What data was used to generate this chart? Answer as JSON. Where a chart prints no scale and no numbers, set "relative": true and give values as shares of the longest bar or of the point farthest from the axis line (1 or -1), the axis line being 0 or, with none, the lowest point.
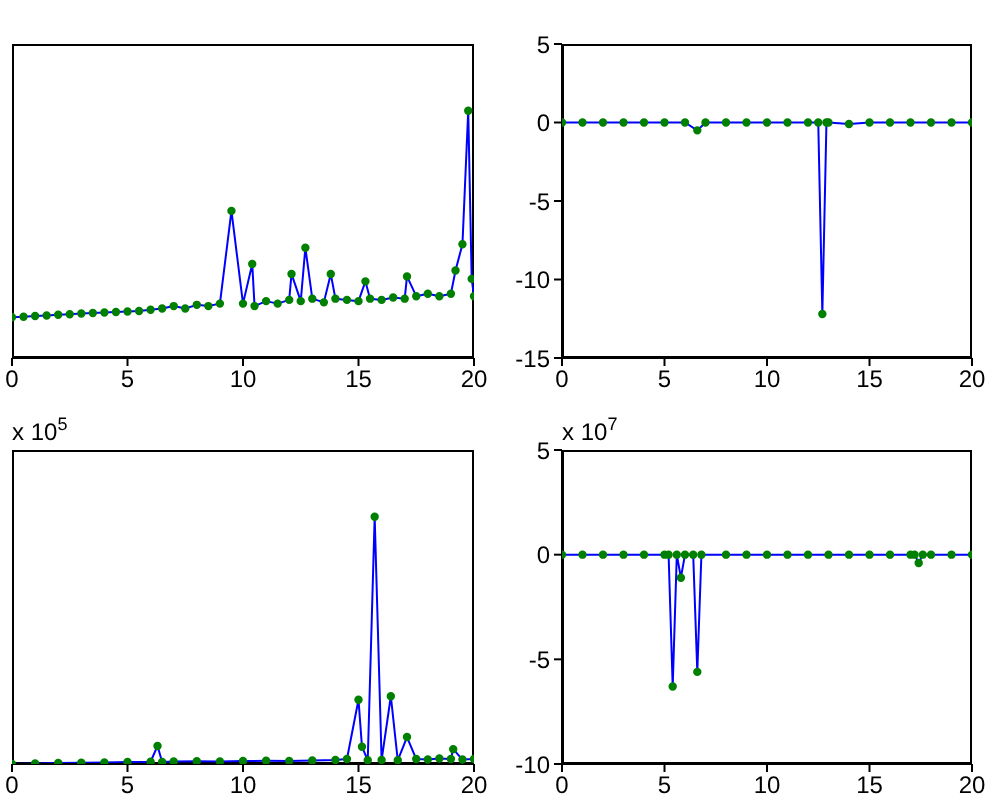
{
  "chart_data": [
    {
      "type": "line",
      "relative": true,
      "x": [
        0,
        0.5,
        1,
        1.5,
        2,
        2.5,
        3,
        3.5,
        4,
        4.5,
        5,
        5.5,
        6,
        6.5,
        7,
        7.5,
        8,
        8.5,
        9,
        9.5,
        10,
        10.4,
        10.5,
        11,
        11.5,
        12,
        12.1,
        12.5,
        12.7,
        13,
        13.5,
        13.8,
        14,
        14.5,
        15,
        15.3,
        15.5,
        16,
        16.5,
        17,
        17.1,
        17.5,
        18,
        18.5,
        19,
        19.2,
        19.5,
        19.75,
        19.9,
        20
      ],
      "xlim": [
        0,
        20
      ],
      "xticks": [
        0,
        5,
        10,
        15,
        20
      ],
      "tick_labels": "x",
      "series": [
        {
          "marker": "none",
          "color": "#0000ff",
          "values": [
            0.165,
            0.167,
            0.17,
            0.172,
            0.175,
            0.177,
            0.18,
            0.182,
            0.184,
            0.186,
            0.188,
            0.19,
            0.195,
            0.2,
            0.21,
            0.2,
            0.215,
            0.21,
            0.22,
            0.595,
            0.22,
            0.38,
            0.21,
            0.23,
            0.22,
            0.235,
            0.34,
            0.23,
            0.446,
            0.24,
            0.225,
            0.34,
            0.24,
            0.235,
            0.23,
            0.31,
            0.24,
            0.235,
            0.245,
            0.24,
            0.33,
            0.25,
            0.26,
            0.25,
            0.26,
            0.354,
            0.46,
            1,
            0.32,
            0.25
          ]
        },
        {
          "type": "scatter",
          "marker": "circle",
          "color": "#008000",
          "values": [
            0.165,
            0.167,
            0.17,
            0.172,
            0.175,
            0.177,
            0.18,
            0.182,
            0.184,
            0.186,
            0.188,
            0.19,
            0.195,
            0.2,
            0.21,
            0.2,
            0.215,
            0.21,
            0.22,
            0.595,
            0.22,
            0.38,
            0.21,
            0.23,
            0.22,
            0.235,
            0.34,
            0.23,
            0.446,
            0.24,
            0.225,
            0.34,
            0.24,
            0.235,
            0.23,
            0.31,
            0.24,
            0.235,
            0.245,
            0.24,
            0.33,
            0.25,
            0.26,
            0.25,
            0.26,
            0.354,
            0.46,
            1,
            0.32,
            0.25
          ]
        }
      ]
    },
    {
      "type": "line",
      "x": [
        0,
        1,
        2,
        3,
        4,
        5,
        6,
        6.6,
        7,
        8,
        9,
        10,
        11,
        12,
        12.5,
        12.7,
        12.9,
        13,
        14,
        15,
        16,
        17,
        18,
        19,
        20
      ],
      "xlim": [
        0,
        20
      ],
      "xticks": [
        0,
        5,
        10,
        15,
        20
      ],
      "ylim": [
        -15,
        5
      ],
      "yticks": [
        -15,
        -10,
        -5,
        0,
        5
      ],
      "series": [
        {
          "marker": "none",
          "color": "#0000ff",
          "values": [
            0,
            0,
            0,
            0,
            0,
            0,
            0,
            -0.5,
            0,
            0,
            0,
            0,
            0,
            0,
            0,
            -12.2,
            0,
            0,
            -0.1,
            0,
            0,
            0,
            0,
            0,
            0
          ]
        },
        {
          "type": "scatter",
          "marker": "circle",
          "color": "#008000",
          "values": [
            0,
            0,
            0,
            0,
            0,
            0,
            0,
            -0.5,
            0,
            0,
            0,
            0,
            0,
            0,
            0,
            -12.2,
            0,
            0,
            -0.1,
            0,
            0,
            0,
            0,
            0,
            0
          ]
        }
      ]
    },
    {
      "type": "line",
      "relative": true,
      "annotations": [
        "x 10$^{5}$"
      ],
      "x": [
        0,
        1,
        2,
        3,
        4,
        5,
        6,
        6.3,
        6.5,
        7,
        8,
        9,
        10,
        11,
        12,
        13,
        14,
        14.5,
        15,
        15.15,
        15.4,
        15.7,
        16,
        16.4,
        16.7,
        17.1,
        17.5,
        18,
        18.5,
        19,
        19.1,
        19.5,
        20
      ],
      "xlim": [
        0,
        20
      ],
      "xticks": [
        0,
        5,
        10,
        15,
        20
      ],
      "tick_labels": "x",
      "series": [
        {
          "marker": "none",
          "color": "#0000ff",
          "values": [
            0,
            0.002,
            0.004,
            0.005,
            0.006,
            0.008,
            0.009,
            0.073,
            0.008,
            0.01,
            0.011,
            0.01,
            0.012,
            0.013,
            0.012,
            0.014,
            0.016,
            0.02,
            0.26,
            0.07,
            0.015,
            1,
            0.016,
            0.274,
            0.015,
            0.109,
            0.02,
            0.018,
            0.022,
            0.02,
            0.06,
            0.018,
            0.02
          ]
        },
        {
          "type": "scatter",
          "marker": "circle",
          "color": "#008000",
          "values": [
            0,
            0.002,
            0.004,
            0.005,
            0.006,
            0.008,
            0.009,
            0.073,
            0.008,
            0.01,
            0.011,
            0.01,
            0.012,
            0.013,
            0.012,
            0.014,
            0.016,
            0.02,
            0.26,
            0.07,
            0.015,
            1,
            0.016,
            0.274,
            0.015,
            0.109,
            0.02,
            0.018,
            0.022,
            0.02,
            0.06,
            0.018,
            0.02
          ]
        }
      ]
    },
    {
      "type": "line",
      "annotations": [
        "x 10$^{7}$"
      ],
      "x": [
        0,
        1,
        2,
        3,
        4,
        5,
        5.2,
        5.4,
        5.6,
        5.8,
        6,
        6.4,
        6.6,
        6.8,
        8,
        9,
        10,
        11,
        12,
        13,
        14,
        15,
        16,
        17,
        17.2,
        17.4,
        17.6,
        18,
        19,
        20
      ],
      "xlim": [
        0,
        20
      ],
      "xticks": [
        0,
        5,
        10,
        15,
        20
      ],
      "ylim": [
        -10,
        5
      ],
      "yticks": [
        -10,
        -5,
        0,
        5
      ],
      "series": [
        {
          "marker": "none",
          "color": "#0000ff",
          "values": [
            0,
            0,
            0,
            0,
            0,
            0,
            0,
            -6.3,
            0,
            -1.1,
            0,
            0,
            -5.6,
            0,
            0,
            0,
            0,
            0,
            0,
            0,
            0,
            0,
            0,
            0,
            0,
            -0.4,
            0,
            0,
            0,
            0
          ]
        },
        {
          "type": "scatter",
          "marker": "circle",
          "color": "#008000",
          "values": [
            0,
            0,
            0,
            0,
            0,
            0,
            0,
            -6.3,
            0,
            -1.1,
            0,
            0,
            -5.6,
            0,
            0,
            0,
            0,
            0,
            0,
            0,
            0,
            0,
            0,
            0,
            0,
            -0.4,
            0,
            0,
            0,
            0
          ]
        }
      ]
    }
  ]
}
